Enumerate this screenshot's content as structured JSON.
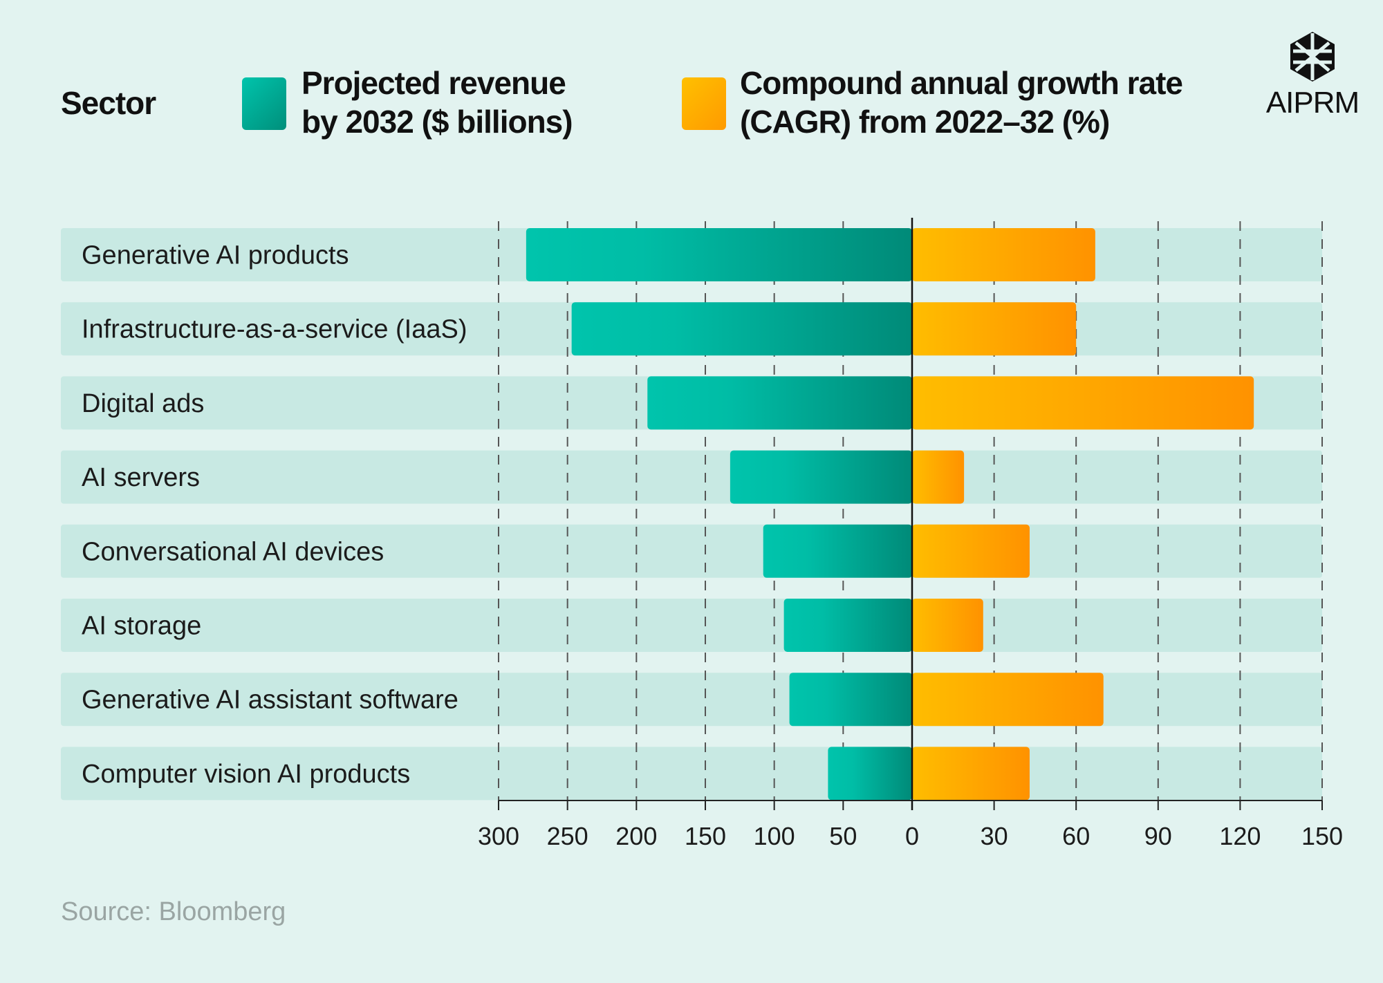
{
  "header": {
    "sector_label": "Sector",
    "legend": [
      {
        "line1": "Projected revenue",
        "line2": "by 2032 ($ billions)",
        "color": "#00a88f"
      },
      {
        "line1": "Compound annual growth rate",
        "line2": "(CAGR) from 2022–32 (%)",
        "color": "#ffae00"
      }
    ],
    "logo_text": "AIPRM"
  },
  "source": "Source: Bloomberg",
  "colors": {
    "background": "#e2f3f0",
    "row": "#c8e9e3",
    "teal_light": "#00c4ac",
    "teal_dark": "#008f7b",
    "orange_light": "#ffc000",
    "orange_dark": "#ff9400"
  },
  "chart_data": {
    "type": "bar",
    "orientation": "horizontal-diverging",
    "categories": [
      "Generative AI products",
      "Infrastructure-as-a-service (IaaS)",
      "Digital ads",
      "AI servers",
      "Conversational AI devices",
      "AI storage",
      "Generative AI assistant software",
      "Computer vision AI products"
    ],
    "series": [
      {
        "name": "Projected revenue by 2032 ($ billions)",
        "side": "left",
        "values": [
          280,
          247,
          192,
          132,
          108,
          93,
          89,
          61
        ],
        "xlim": [
          0,
          300
        ],
        "ticks": [
          300,
          250,
          200,
          150,
          100,
          50,
          0
        ]
      },
      {
        "name": "Compound annual growth rate (CAGR) from 2022–32 (%)",
        "side": "right",
        "values": [
          67,
          60,
          125,
          19,
          43,
          26,
          70,
          43
        ],
        "xlim": [
          0,
          150
        ],
        "ticks": [
          30,
          60,
          90,
          120,
          150
        ]
      }
    ],
    "legend": "top",
    "grid": "dashed vertical"
  }
}
